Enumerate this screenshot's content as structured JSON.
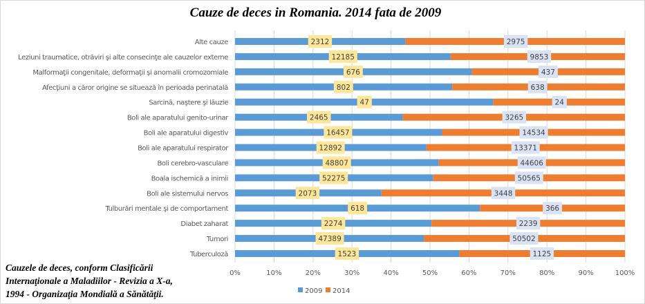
{
  "chart_data": {
    "type": "bar",
    "orientation": "horizontal",
    "stacked": "100%",
    "title": "Cauze de deces in Romania. 2014 fata de 2009",
    "categories": [
      "Alte cauze",
      "Leziuni traumatice, otrăviri şi alte consecinţe ale cauzelor externe",
      "Malformaţii congenitale, deformaţii şi anomalii cromozomiale",
      "Afecţiuni a căror origine se situează în perioada perinatală",
      "Sarcină, naştere şi lăuzie",
      "Boli ale aparatului genito-urinar",
      "Boli ale aparatului digestiv",
      "Boli ale aparatului respirator",
      "Boli cerebro-vasculare",
      "Boala ischemică a inimii",
      "Boli ale sistemului nervos",
      "Tulburări mentale şi de comportament",
      "Diabet zaharat",
      "Tumori",
      "Tuberculoză"
    ],
    "series": [
      {
        "name": "2009",
        "color": "#5b9bd5",
        "label_bg": "#ffe699",
        "values": [
          2312,
          12185,
          676,
          802,
          47,
          2465,
          16457,
          12892,
          48807,
          52275,
          2073,
          618,
          2274,
          47389,
          1523
        ]
      },
      {
        "name": "2014",
        "color": "#ed7d31",
        "label_bg": "#dae3f3",
        "values": [
          2975,
          9853,
          437,
          638,
          24,
          3265,
          14534,
          13371,
          44606,
          50565,
          3448,
          366,
          2239,
          50502,
          1125
        ]
      }
    ],
    "x_ticks": [
      "0%",
      "10%",
      "20%",
      "30%",
      "40%",
      "50%",
      "60%",
      "70%",
      "80%",
      "90%",
      "100%"
    ],
    "xlim": [
      0,
      100
    ],
    "xlabel": "",
    "ylabel": "",
    "grid": "vertical",
    "legend": "bottom",
    "annotation": [
      "Cauzele de deces, conform Clasificării",
      "Internaţionale a Maladiilor - Revizia a X-a,",
      "1994 - Organizaţia Mondială a Sănătăţii."
    ]
  }
}
